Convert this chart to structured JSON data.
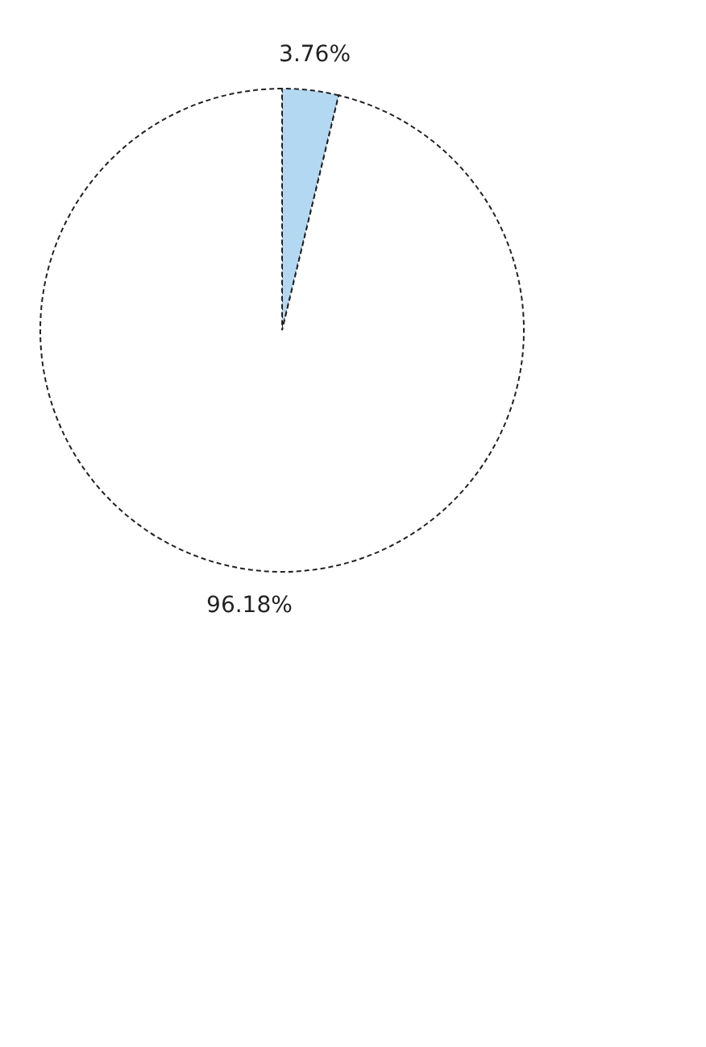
{
  "chart_data": {
    "type": "pie",
    "categories": [
      null,
      null
    ],
    "values": [
      3.76,
      96.18
    ],
    "colors": [
      "#b3d9f2",
      "#ffffff"
    ],
    "value_labels": [
      "3.76%",
      "96.18%"
    ]
  }
}
